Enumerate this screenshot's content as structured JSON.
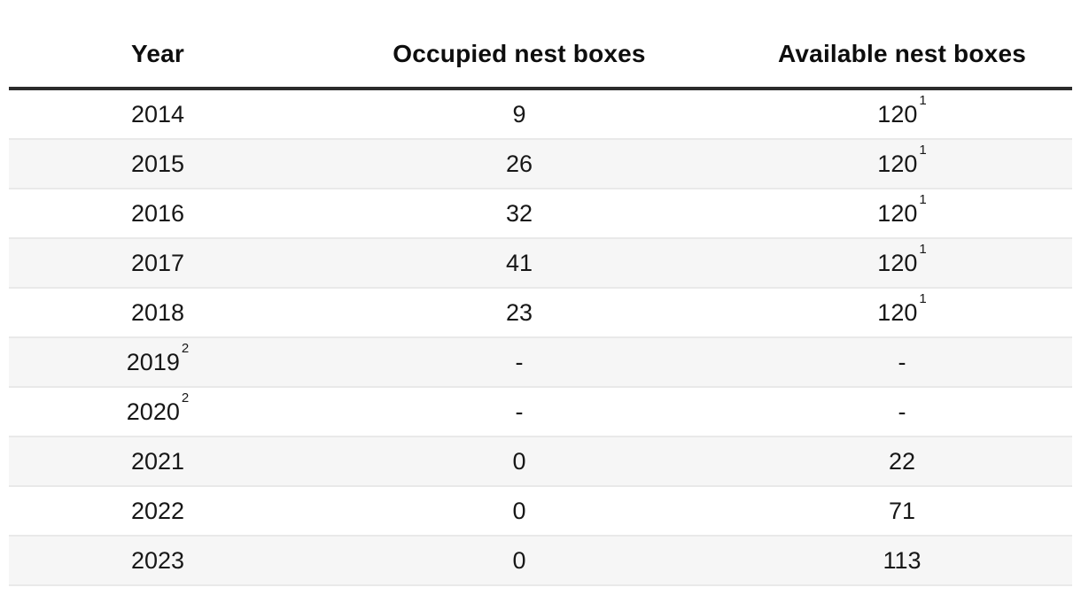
{
  "chart_data": {
    "type": "table",
    "columns": [
      "Year",
      "Occupied nest boxes",
      "Available nest boxes"
    ],
    "rows": [
      {
        "year": 2014,
        "occupied": 9,
        "available": 120,
        "available_footnote": "1"
      },
      {
        "year": 2015,
        "occupied": 26,
        "available": 120,
        "available_footnote": "1"
      },
      {
        "year": 2016,
        "occupied": 32,
        "available": 120,
        "available_footnote": "1"
      },
      {
        "year": 2017,
        "occupied": 41,
        "available": 120,
        "available_footnote": "1"
      },
      {
        "year": 2018,
        "occupied": 23,
        "available": 120,
        "available_footnote": "1"
      },
      {
        "year": 2019,
        "year_footnote": "2",
        "occupied": null,
        "available": null
      },
      {
        "year": 2020,
        "year_footnote": "2",
        "occupied": null,
        "available": null
      },
      {
        "year": 2021,
        "occupied": 0,
        "available": 22
      },
      {
        "year": 2022,
        "occupied": 0,
        "available": 71
      },
      {
        "year": 2023,
        "occupied": 0,
        "available": 113
      }
    ],
    "layout": {
      "zebra_striping": true,
      "striped_rows": "even",
      "header_rule": true
    }
  },
  "table": {
    "columns": [
      {
        "label": "Year"
      },
      {
        "label": "Occupied nest boxes"
      },
      {
        "label": "Available nest boxes"
      }
    ],
    "rows": [
      {
        "cells": [
          {
            "text": "2014",
            "sup": ""
          },
          {
            "text": "9",
            "sup": ""
          },
          {
            "text": "120",
            "sup": "1"
          }
        ]
      },
      {
        "cells": [
          {
            "text": "2015",
            "sup": ""
          },
          {
            "text": "26",
            "sup": ""
          },
          {
            "text": "120",
            "sup": "1"
          }
        ]
      },
      {
        "cells": [
          {
            "text": "2016",
            "sup": ""
          },
          {
            "text": "32",
            "sup": ""
          },
          {
            "text": "120",
            "sup": "1"
          }
        ]
      },
      {
        "cells": [
          {
            "text": "2017",
            "sup": ""
          },
          {
            "text": "41",
            "sup": ""
          },
          {
            "text": "120",
            "sup": "1"
          }
        ]
      },
      {
        "cells": [
          {
            "text": "2018",
            "sup": ""
          },
          {
            "text": "23",
            "sup": ""
          },
          {
            "text": "120",
            "sup": "1"
          }
        ]
      },
      {
        "cells": [
          {
            "text": "2019",
            "sup": "2"
          },
          {
            "text": "-",
            "sup": ""
          },
          {
            "text": "-",
            "sup": ""
          }
        ]
      },
      {
        "cells": [
          {
            "text": "2020",
            "sup": "2"
          },
          {
            "text": "-",
            "sup": ""
          },
          {
            "text": "-",
            "sup": ""
          }
        ]
      },
      {
        "cells": [
          {
            "text": "2021",
            "sup": ""
          },
          {
            "text": "0",
            "sup": ""
          },
          {
            "text": "22",
            "sup": ""
          }
        ]
      },
      {
        "cells": [
          {
            "text": "2022",
            "sup": ""
          },
          {
            "text": "0",
            "sup": ""
          },
          {
            "text": "71",
            "sup": ""
          }
        ]
      },
      {
        "cells": [
          {
            "text": "2023",
            "sup": ""
          },
          {
            "text": "0",
            "sup": ""
          },
          {
            "text": "113",
            "sup": ""
          }
        ]
      }
    ],
    "empty_value": "-",
    "colors": {
      "stripe": "#f6f6f6",
      "row_border": "#e9e9e9",
      "header_rule": "#2c2c2c",
      "text": "#141414"
    }
  }
}
